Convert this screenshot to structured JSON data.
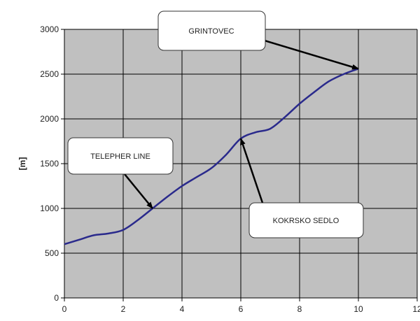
{
  "chart_data": {
    "type": "line",
    "title": "",
    "xlabel": "",
    "ylabel": "[m]",
    "xlim": [
      0,
      12
    ],
    "ylim": [
      0,
      3000
    ],
    "xticks": [
      0,
      2,
      4,
      6,
      8,
      10,
      12
    ],
    "yticks": [
      0,
      500,
      1000,
      1500,
      2000,
      2500,
      3000
    ],
    "grid": true,
    "legend": "none",
    "colors": {
      "plot_bg": "#c0c0c0",
      "line": "#2a2a8c",
      "grid": "#000000"
    },
    "series": [
      {
        "x": [
          0,
          0.5,
          1,
          1.5,
          2,
          2.5,
          3,
          3.5,
          4,
          4.5,
          5,
          5.5,
          6,
          6.5,
          7,
          7.5,
          8,
          8.5,
          9,
          9.5,
          10
        ],
        "values": [
          600,
          650,
          700,
          720,
          760,
          870,
          1000,
          1130,
          1250,
          1350,
          1450,
          1600,
          1780,
          1850,
          1890,
          2020,
          2170,
          2300,
          2420,
          2500,
          2560
        ]
      }
    ],
    "annotations": [
      {
        "id": "grintovec",
        "text": "GRINTOVEC",
        "target": [
          10,
          2560
        ]
      },
      {
        "id": "telepher",
        "text": "TELEPHER LINE",
        "target": [
          3,
          1000
        ]
      },
      {
        "id": "kokrsko",
        "text": "KOKRSKO SEDLO",
        "target": [
          6,
          1780
        ]
      }
    ]
  }
}
